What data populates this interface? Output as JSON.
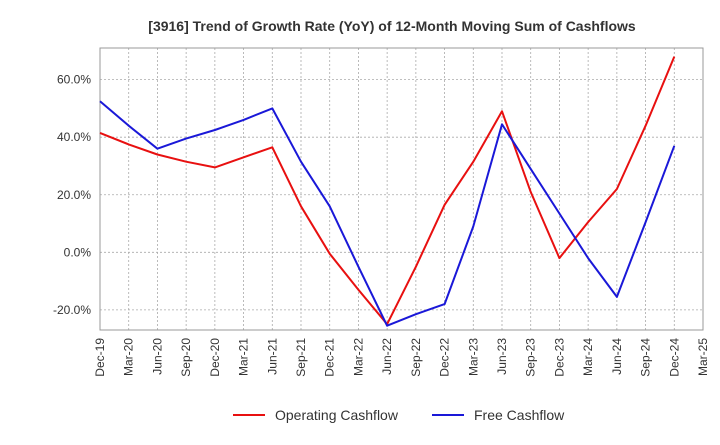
{
  "chart_data": {
    "type": "line",
    "title": "[3916]  Trend of Growth Rate (YoY) of 12-Month Moving Sum of Cashflows",
    "xlabel": "",
    "ylabel": "",
    "x": [
      "Dec-19",
      "Mar-20",
      "Jun-20",
      "Sep-20",
      "Dec-20",
      "Mar-21",
      "Jun-21",
      "Sep-21",
      "Dec-21",
      "Mar-22",
      "Jun-22",
      "Sep-22",
      "Dec-22",
      "Mar-23",
      "Jun-23",
      "Sep-23",
      "Dec-23",
      "Mar-24",
      "Jun-24",
      "Sep-24",
      "Dec-24",
      "Mar-25"
    ],
    "ylim": [
      -27,
      71
    ],
    "yticks": [
      60,
      40,
      20,
      0,
      -20
    ],
    "ytick_labels": [
      "60.0%",
      "40.0%",
      "20.0%",
      "0.0%",
      "-20.0%"
    ],
    "grid": true,
    "legend_position": "bottom",
    "series": [
      {
        "name": "Operating Cashflow",
        "color": "#e81010",
        "values": [
          41.5,
          37.5,
          34,
          31.5,
          29.5,
          33,
          36.5,
          16,
          -0.5,
          -13,
          -25,
          -5,
          16.5,
          31.5,
          49,
          21,
          -2,
          10.5,
          22,
          44,
          68,
          null
        ]
      },
      {
        "name": "Free Cashflow",
        "color": "#1a18d8",
        "values": [
          52.5,
          44,
          36,
          39.5,
          42.5,
          46,
          50,
          31.5,
          16,
          -5,
          -25.5,
          -21.5,
          -18,
          9,
          44.5,
          29,
          13.5,
          -2,
          -15.5,
          10.5,
          37,
          null
        ]
      }
    ]
  }
}
